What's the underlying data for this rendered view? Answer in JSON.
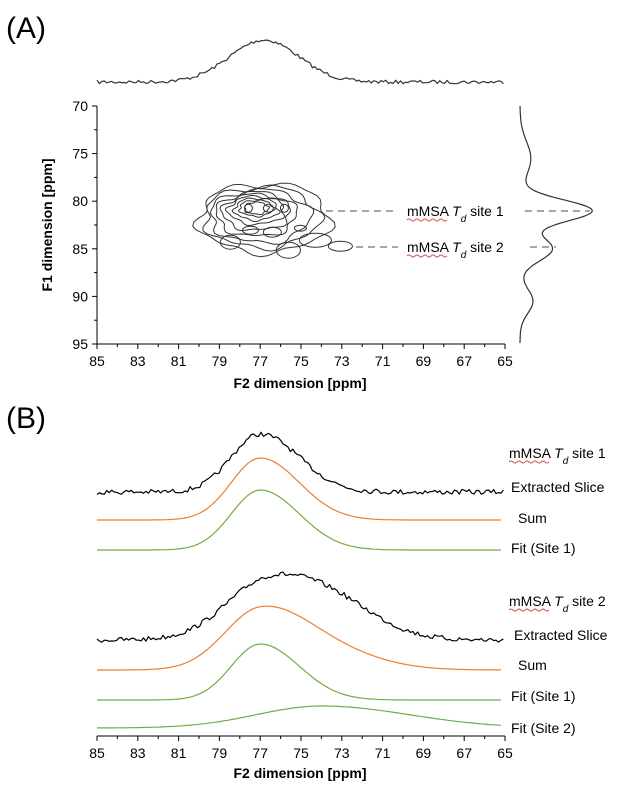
{
  "chart_data": [
    {
      "panel": "(A)",
      "type": "contour",
      "xlabel": "F2 dimension [ppm]",
      "ylabel": "F1 dimension [ppm]",
      "xlim": [
        85,
        65
      ],
      "ylim": [
        70,
        95
      ],
      "xticks": [
        "85",
        "83",
        "81",
        "79",
        "77",
        "75",
        "73",
        "71",
        "69",
        "67",
        "65"
      ],
      "yticks": [
        "70",
        "75",
        "80",
        "85",
        "90",
        "95"
      ],
      "contour_center": {
        "x": 76.5,
        "y": 82
      },
      "top_projection_peak_ppm": 76.5,
      "side_projection_peaks_ppm": [
        81,
        85
      ],
      "annotations": [
        {
          "prefix": "mMSA ",
          "italic": "T",
          "sub": "d",
          "suffix": " site 1",
          "f1": 81
        },
        {
          "prefix": "mMSA ",
          "italic": "T",
          "sub": "d",
          "suffix": " site 2",
          "f1": 85
        }
      ]
    },
    {
      "panel": "(B)",
      "type": "line",
      "xlabel": "F2 dimension [ppm]",
      "xlim": [
        85,
        65
      ],
      "xticks": [
        "85",
        "83",
        "81",
        "79",
        "77",
        "75",
        "73",
        "71",
        "69",
        "67",
        "65"
      ],
      "groups": [
        {
          "title": {
            "prefix": "mMSA ",
            "italic": "T",
            "sub": "d",
            "suffix": " site 1"
          },
          "traces": [
            {
              "name": "Extracted Slice",
              "color": "#000000",
              "center": 77.0,
              "width": 2.0
            },
            {
              "name": "Sum",
              "color": "#ed7d31",
              "center": 77.0,
              "width": 2.0
            },
            {
              "name": "Fit (Site 1)",
              "color": "#70ad47",
              "center": 77.0,
              "width": 2.0
            }
          ]
        },
        {
          "title": {
            "prefix": "mMSA ",
            "italic": "T",
            "sub": "d",
            "suffix": " site 2"
          },
          "traces": [
            {
              "name": "Extracted Slice",
              "color": "#000000",
              "center": 76.5,
              "width": 3.0
            },
            {
              "name": "Sum",
              "color": "#ed7d31",
              "center": 77.0,
              "width": 2.5
            },
            {
              "name": "Fit (Site 1)",
              "color": "#70ad47",
              "center": 77.0,
              "width": 2.0
            },
            {
              "name": "Fit (Site 2)",
              "color": "#70ad47",
              "center": 74.0,
              "width": 4.5
            }
          ]
        }
      ]
    }
  ]
}
